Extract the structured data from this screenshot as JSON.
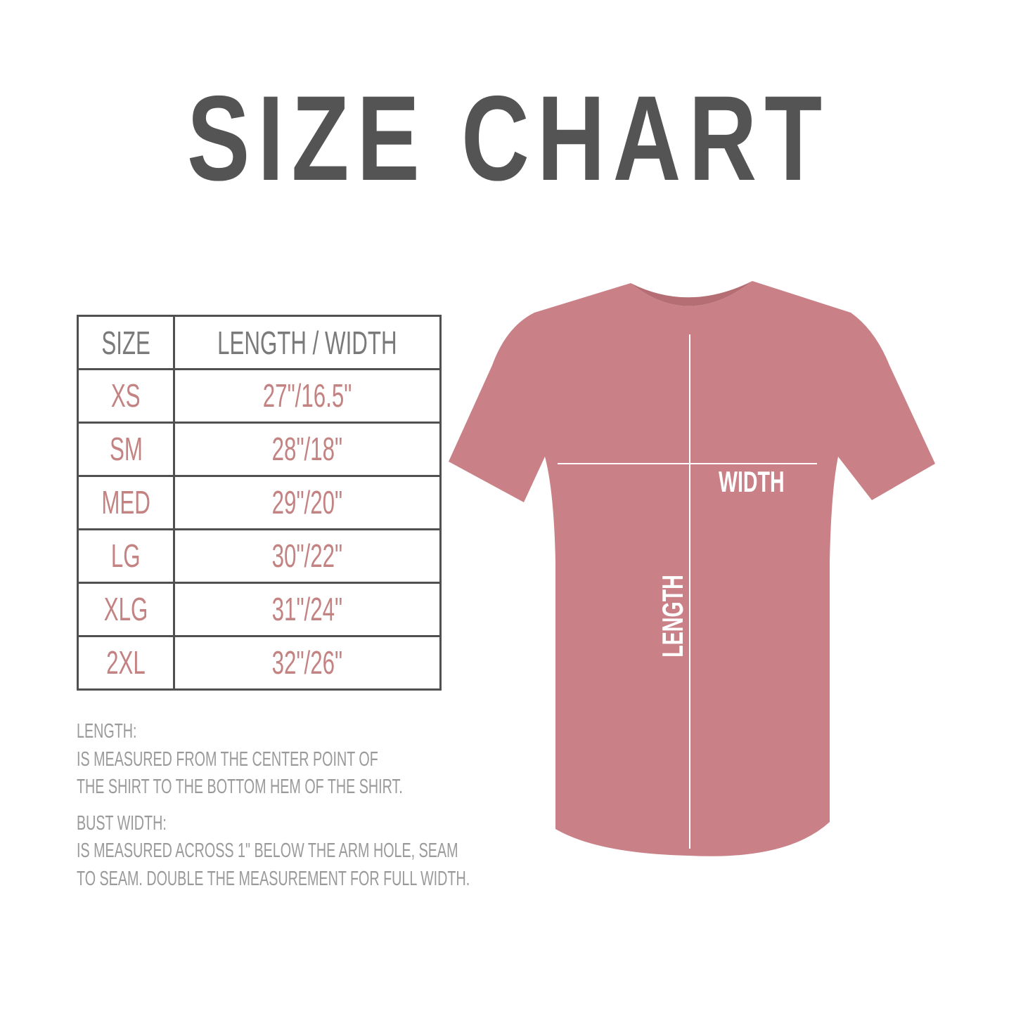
{
  "title": "SIZE CHART",
  "colors": {
    "title": "#545454",
    "table_border": "#505050",
    "size_text": "#c48383",
    "header_text": "#7a7a7a",
    "notes_text": "#9a9a9a",
    "shirt": "#c98187"
  },
  "table": {
    "headers": [
      "SIZE",
      "LENGTH / WIDTH"
    ],
    "rows": [
      {
        "size": "XS",
        "measure": "27\"/16.5\""
      },
      {
        "size": "SM",
        "measure": "28\"/18\""
      },
      {
        "size": "MED",
        "measure": "29\"/20\""
      },
      {
        "size": "LG",
        "measure": "30\"/22\""
      },
      {
        "size": "XLG",
        "measure": "31\"/24\""
      },
      {
        "size": "2XL",
        "measure": "32\"/26\""
      }
    ]
  },
  "notes": {
    "length_heading": "LENGTH:",
    "length_lines": [
      "IS MEASURED FROM THE CENTER POINT OF",
      "THE SHIRT TO THE BOTTOM HEM OF THE SHIRT."
    ],
    "width_heading": "BUST WIDTH:",
    "width_lines": [
      "IS MEASURED ACROSS  1\" BELOW THE ARM HOLE, SEAM",
      "TO SEAM. DOUBLE THE MEASUREMENT FOR FULL WIDTH."
    ]
  },
  "shirt": {
    "width_label": "WIDTH",
    "length_label": "LENGTH"
  }
}
